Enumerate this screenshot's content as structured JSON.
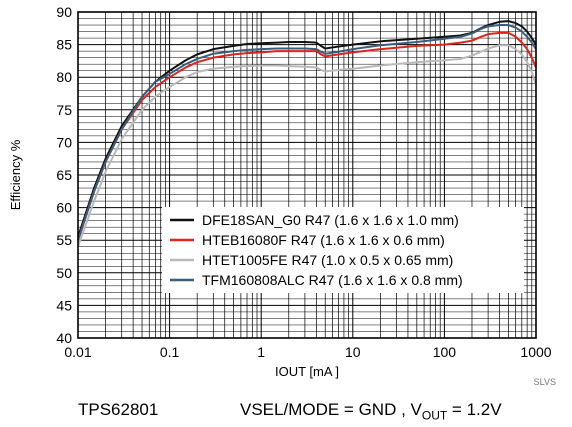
{
  "chart_data": {
    "type": "line",
    "xlabel": "IOUT [mA ]",
    "ylabel": "Efficiency %",
    "x_scale": "log",
    "xlim": [
      0.01,
      1000
    ],
    "ylim": [
      40,
      90
    ],
    "grid": true,
    "legend_position": "lower-right",
    "x_ticks": [
      "0.01",
      "0.1",
      "1",
      "10",
      "100",
      "1000"
    ],
    "y_ticks": [
      "40",
      "45",
      "50",
      "55",
      "60",
      "65",
      "70",
      "75",
      "80",
      "85",
      "90"
    ],
    "series": [
      {
        "name": "DFE18SAN_G0 R47 (1.6 x 1.6 x 1.0 mm)",
        "color": "#111111",
        "x": [
          0.01,
          0.015,
          0.02,
          0.03,
          0.05,
          0.07,
          0.1,
          0.15,
          0.2,
          0.3,
          0.5,
          0.7,
          1,
          1.5,
          2,
          3,
          4,
          4.5,
          5,
          7,
          10,
          20,
          50,
          100,
          150,
          200,
          250,
          300,
          400,
          500,
          600,
          700,
          800,
          900,
          1000
        ],
        "y": [
          55.5,
          63,
          67.5,
          72.5,
          77,
          79.3,
          81,
          82.6,
          83.5,
          84.3,
          84.8,
          85.1,
          85.2,
          85.3,
          85.4,
          85.4,
          85.3,
          84.8,
          84.4,
          84.7,
          85,
          85.5,
          85.9,
          86.2,
          86.4,
          86.8,
          87.5,
          88,
          88.5,
          88.6,
          88.3,
          87.8,
          87,
          86,
          85
        ]
      },
      {
        "name": "HTEB16080F R47 (1.6 x 1.6 x 0.6 mm)",
        "color": "#e0231c",
        "x": [
          0.01,
          0.015,
          0.02,
          0.03,
          0.05,
          0.07,
          0.1,
          0.15,
          0.2,
          0.3,
          0.5,
          0.7,
          1,
          1.5,
          2,
          3,
          4,
          4.5,
          5,
          7,
          10,
          20,
          50,
          100,
          150,
          200,
          250,
          300,
          400,
          500,
          600,
          700,
          800,
          900,
          1000
        ],
        "y": [
          55,
          62.5,
          67,
          72,
          76.5,
          78.5,
          80,
          81.5,
          82.3,
          83,
          83.5,
          83.7,
          83.8,
          84,
          84,
          84,
          84,
          83.5,
          83.2,
          83.5,
          83.8,
          84.3,
          84.8,
          85,
          85.3,
          85.6,
          86.2,
          86.6,
          86.8,
          86.8,
          86.2,
          85.3,
          84.3,
          83,
          81.5
        ]
      },
      {
        "name": "HTET1005FE R47 (1.0 x 0.5 x 0.65 mm)",
        "color": "#b9b9b9",
        "x": [
          0.01,
          0.015,
          0.02,
          0.03,
          0.05,
          0.07,
          0.1,
          0.15,
          0.2,
          0.3,
          0.5,
          0.7,
          1,
          1.5,
          2,
          3,
          4,
          4.5,
          5,
          7,
          10,
          20,
          50,
          100,
          150,
          200,
          250,
          300,
          400,
          500,
          600,
          700,
          800,
          900,
          1000
        ],
        "y": [
          54,
          61,
          65.5,
          70.5,
          75,
          77,
          78.5,
          80,
          80.8,
          81.3,
          81.6,
          81.7,
          81.8,
          81.8,
          81.7,
          81.6,
          81.5,
          81.1,
          80.9,
          81.1,
          81.3,
          81.8,
          82.3,
          82.6,
          82.8,
          83.3,
          83.9,
          84.4,
          84.9,
          84.9,
          84.3,
          83.5,
          82.3,
          80.8,
          78.8
        ]
      },
      {
        "name": "TFM160808ALC R47 (1.6 x 1.6 x 0.8 mm)",
        "color": "#3a5f7c",
        "x": [
          0.01,
          0.015,
          0.02,
          0.03,
          0.05,
          0.07,
          0.1,
          0.15,
          0.2,
          0.3,
          0.5,
          0.7,
          1,
          1.5,
          2,
          3,
          4,
          4.5,
          5,
          7,
          10,
          20,
          50,
          100,
          150,
          200,
          250,
          300,
          400,
          500,
          600,
          700,
          800,
          900,
          1000
        ],
        "y": [
          55,
          62.5,
          67,
          72,
          77,
          79.3,
          80.5,
          82,
          82.8,
          83.6,
          84,
          84.2,
          84.3,
          84.4,
          84.4,
          84.4,
          84.3,
          83.9,
          83.6,
          83.9,
          84.3,
          84.9,
          85.4,
          85.9,
          86.2,
          86.7,
          87.4,
          87.8,
          88,
          88,
          87.6,
          87,
          86.2,
          85.3,
          84.3
        ]
      }
    ]
  },
  "ref_code": "SLVS",
  "caption": {
    "part": "TPS62801",
    "condition_main": "VSEL/MODE = GND ,  V",
    "condition_sub": "OUT",
    "condition_tail": " = 1.2V"
  }
}
